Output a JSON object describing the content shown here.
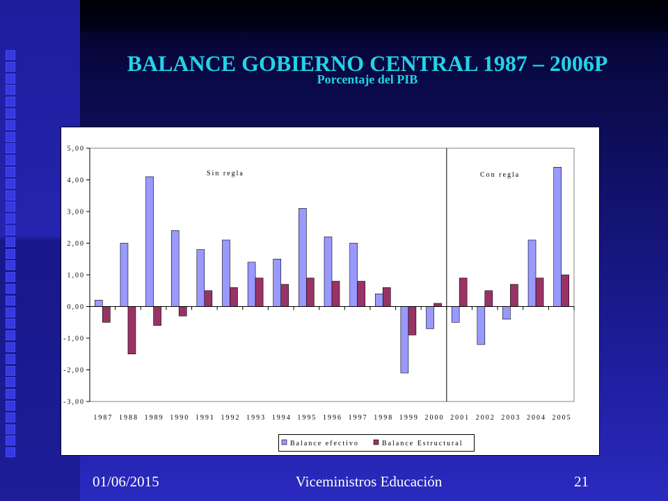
{
  "slide": {
    "title": "BALANCE GOBIERNO CENTRAL 1987 – 2006P",
    "subtitle": "Porcentaje del PIB"
  },
  "footer": {
    "date": "01/06/2015",
    "center_text": "Viceministros Educación",
    "page_number": "21"
  },
  "colors": {
    "title": "#22D3E6",
    "footer_text": "#FFFFFF",
    "decorative_squares": "#3838E0"
  },
  "chart_data": {
    "type": "bar",
    "categories": [
      "1987",
      "1988",
      "1989",
      "1990",
      "1991",
      "1992",
      "1993",
      "1994",
      "1995",
      "1996",
      "1997",
      "1998",
      "1999",
      "2000",
      "2001",
      "2002",
      "2003",
      "2004",
      "2005"
    ],
    "series": [
      {
        "name": "Balance efectivo",
        "color": "#9999FF",
        "values": [
          0.2,
          2.0,
          4.1,
          2.4,
          1.8,
          2.1,
          1.4,
          1.5,
          3.1,
          2.2,
          2.0,
          0.4,
          -2.1,
          -0.7,
          -0.5,
          -1.2,
          -0.4,
          2.1,
          4.4
        ]
      },
      {
        "name": "Balance Estructural",
        "color": "#993366",
        "values": [
          -0.5,
          -1.5,
          -0.6,
          -0.3,
          0.5,
          0.6,
          0.9,
          0.7,
          0.9,
          0.8,
          0.8,
          0.6,
          -0.9,
          0.1,
          0.9,
          0.5,
          0.7,
          0.9,
          1.0
        ]
      }
    ],
    "ylim": [
      -3,
      5
    ],
    "y_tick_labels": [
      "5,00",
      "4,00",
      "3,00",
      "2,00",
      "1,00",
      "0,00",
      "-1,00",
      "-2,00",
      "-3,00"
    ],
    "xlabel": "",
    "ylabel": "",
    "annotations": [
      "Sin regla",
      "Con regla"
    ],
    "divider_after": 2000,
    "grid": false,
    "legend_position": "bottom"
  }
}
